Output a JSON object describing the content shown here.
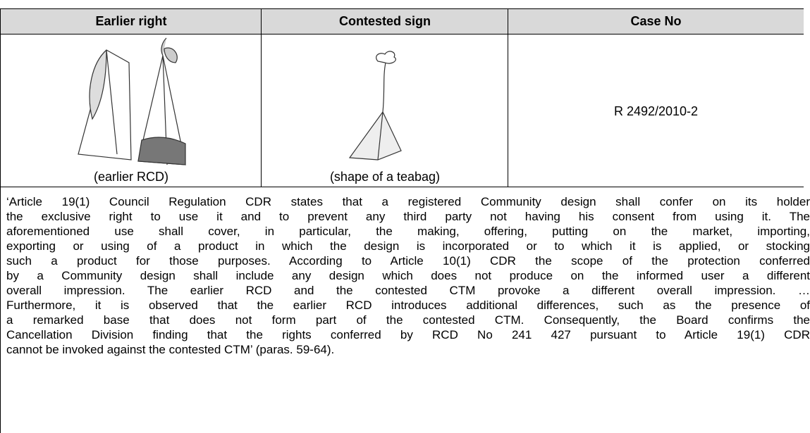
{
  "table": {
    "header": [
      "Earlier right",
      "Contested sign",
      "Case No"
    ],
    "row": {
      "earlier_caption": "(earlier RCD)",
      "contested_caption": "(shape of a teabag)",
      "case_no": "R 2492/2010-2"
    },
    "quote_lines": [
      "‘Article 19(1) Council Regulation CDR states that a registered Community design shall confer on its holder",
      "the exclusive right to use it and to prevent any third party not having his consent from using it. The",
      "aforementioned use shall cover, in particular, the making, offering, putting on the market, importing,",
      "exporting or using of a product in which the design is incorporated or to which it is applied, or stocking",
      "such a product for those purposes. According to Article 10(1) CDR the scope of the protection conferred",
      "by a Community design shall include any design which does not produce on the informed user a different",
      "overall impression. The earlier RCD and the contested CTM provoke a different overall impression. …",
      "Furthermore, it is observed that the earlier RCD introduces additional differences, such as the presence of",
      "a remarked base that does not form part of the contested CTM. Consequently, the Board confirms the",
      "Cancellation Division finding that the rights conferred by RCD No 241 427 pursuant to Article 19(1) CDR",
      "cannot be invoked against the contested CTM’ (paras. 59-64)."
    ]
  }
}
